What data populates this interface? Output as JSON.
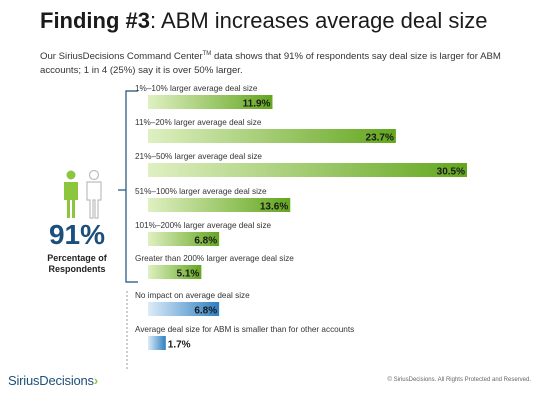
{
  "slide": {
    "title_bold": "Finding #3",
    "title_rest": ": ABM increases average deal size",
    "subtitle_pre": "Our SiriusDecisions Command Center",
    "subtitle_tm": "TM",
    "subtitle_post": " data shows that 91% of respondents say deal size is larger for ABM accounts; 1 in 4 (25%) say it is over 50% larger.",
    "big_number": "91%",
    "big_number_label": "Percentage of Respondents",
    "logo_text": "SiriusDecisions",
    "logo_arrow": "›",
    "footer": "© SiriusDecisions. All Rights Protected and Reserved."
  },
  "icons": {
    "people": "two-person-icon",
    "logo_arrow": "chevron-right-icon"
  },
  "colors": {
    "green_dark": "#63a61f",
    "green_light": "#dff0c2",
    "blue_dark": "#2f7fc1",
    "blue_light": "#dcecf9",
    "bracket": "#1d4f7c",
    "people_green": "#8cc63f",
    "people_grey": "#bdbdbd"
  },
  "chart_data": {
    "type": "bar",
    "orientation": "horizontal",
    "xlim": [
      0,
      30.5
    ],
    "series": [
      {
        "categories": [
          "1%–10% larger average deal size",
          "11%–20% larger average deal size",
          "21%–50% larger average deal size",
          "51%–100% larger average deal size",
          "101%–200% larger average deal size",
          "Greater than 200% larger average deal size"
        ],
        "values": [
          11.9,
          23.7,
          30.5,
          13.6,
          6.8,
          5.1
        ],
        "labels": [
          "11.9%",
          "23.7%",
          "30.5%",
          "13.6%",
          "6.8%",
          "5.1%"
        ],
        "color": "green"
      },
      {
        "categories": [
          "No impact on average deal size",
          "Average deal size for ABM is smaller than for other accounts"
        ],
        "values": [
          6.8,
          1.7
        ],
        "labels": [
          "6.8%",
          "1.7%"
        ],
        "color": "blue"
      }
    ]
  }
}
